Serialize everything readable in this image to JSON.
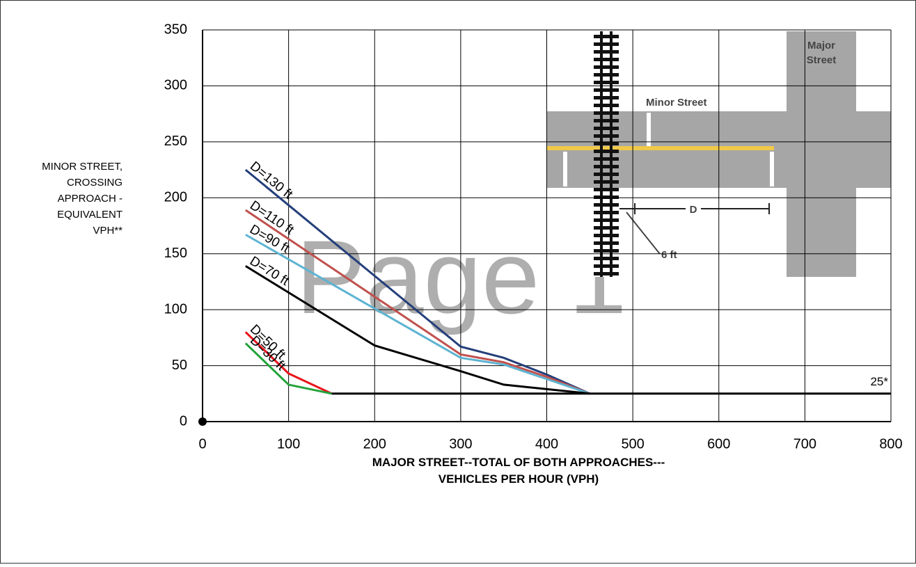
{
  "chart_data": {
    "type": "line",
    "x_label": [
      "MAJOR STREET--TOTAL OF BOTH APPROACHES---",
      "VEHICLES PER HOUR (VPH)"
    ],
    "y_label": [
      "MINOR STREET,",
      "CROSSING",
      "APPROACH -",
      "EQUIVALENT",
      "VPH**"
    ],
    "watermark": "Page 1",
    "xlim": [
      0,
      800
    ],
    "xticks": [
      0,
      100,
      200,
      300,
      400,
      500,
      600,
      700,
      800
    ],
    "ylim": [
      0,
      350
    ],
    "yticks": [
      0,
      50,
      100,
      150,
      200,
      250,
      300,
      350
    ],
    "grid": true,
    "series": [
      {
        "name": "D=130 ft",
        "color": "#243f7a",
        "x": [
          50,
          300,
          350,
          400,
          450
        ],
        "values": [
          225,
          67,
          57,
          42,
          25
        ]
      },
      {
        "name": "D=110 ft",
        "color": "#c0504d",
        "x": [
          50,
          300,
          350,
          400,
          450
        ],
        "values": [
          189,
          60,
          53,
          40,
          25
        ]
      },
      {
        "name": "D=90 ft",
        "color": "#5db3d1",
        "x": [
          50,
          200,
          300,
          350,
          400,
          450
        ],
        "values": [
          167,
          101,
          57,
          51,
          38,
          25
        ]
      },
      {
        "name": "D=70 ft",
        "color": "#000000",
        "x": [
          50,
          200,
          300,
          350,
          450
        ],
        "values": [
          139,
          68,
          45,
          33,
          25
        ]
      },
      {
        "name": "D=50 ft",
        "color": "#e8141a",
        "x": [
          50,
          100,
          150
        ],
        "values": [
          80,
          43,
          25
        ]
      },
      {
        "name": "D=30 ft",
        "color": "#22a33a",
        "x": [
          50,
          100,
          150
        ],
        "values": [
          70,
          33,
          25
        ]
      },
      {
        "name": "25*",
        "color": "#000000",
        "x": [
          150,
          800
        ],
        "values": [
          25,
          25
        ]
      }
    ],
    "inset_labels": {
      "major_street": [
        "Major",
        "Street"
      ],
      "minor_street": "Minor Street",
      "distance": "D",
      "offset": "6 ft"
    }
  }
}
